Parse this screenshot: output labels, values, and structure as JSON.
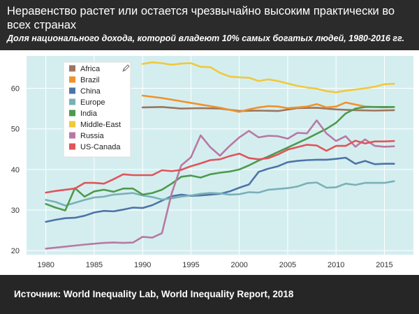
{
  "header": {
    "title": "Неравенство растет или остается чрезвычайно высоким практически во всех странах",
    "subtitle": "Доля национального дохода, которой владеют 10% самых богатых людей, 1980-2016 гг."
  },
  "footer": {
    "source": "Источник: World Inequality Lab, World Inequality Report, 2018"
  },
  "colors": {
    "plot_background": "#d4eef0",
    "gridline": "#ffffff"
  },
  "chart_data": {
    "type": "line",
    "xlim": [
      1978,
      2018
    ],
    "ylim": [
      19,
      68
    ],
    "xticks": [
      1980,
      1985,
      1990,
      1995,
      2000,
      2005,
      2010,
      2015
    ],
    "yticks": [
      20,
      30,
      40,
      50,
      60
    ],
    "grid": true,
    "legend_position": "top-left",
    "series": [
      {
        "name": "Africa",
        "color": "#9b7560",
        "points": [
          [
            1990,
            55.3
          ],
          [
            1992,
            55.4
          ],
          [
            1994,
            55.0
          ],
          [
            1996,
            55.1
          ],
          [
            1998,
            55.0
          ],
          [
            2000,
            54.4
          ],
          [
            2002,
            54.5
          ],
          [
            2004,
            54.4
          ],
          [
            2006,
            55.1
          ],
          [
            2008,
            55.2
          ],
          [
            2010,
            54.8
          ],
          [
            2012,
            54.6
          ],
          [
            2014,
            54.5
          ],
          [
            2016,
            54.6
          ]
        ]
      },
      {
        "name": "Brazil",
        "color": "#f0922a",
        "points": [
          [
            1990,
            58.2
          ],
          [
            1992,
            57.6
          ],
          [
            1994,
            56.8
          ],
          [
            1996,
            56.0
          ],
          [
            1998,
            55.2
          ],
          [
            2000,
            54.2
          ],
          [
            2001,
            54.8
          ],
          [
            2002,
            55.3
          ],
          [
            2003,
            55.6
          ],
          [
            2004,
            55.5
          ],
          [
            2005,
            55.1
          ],
          [
            2006,
            55.3
          ],
          [
            2007,
            55.5
          ],
          [
            2008,
            56.1
          ],
          [
            2009,
            55.3
          ],
          [
            2010,
            55.5
          ],
          [
            2011,
            56.5
          ],
          [
            2012,
            56.0
          ],
          [
            2013,
            55.5
          ],
          [
            2014,
            55.4
          ],
          [
            2015,
            55.3
          ],
          [
            2016,
            55.4
          ]
        ]
      },
      {
        "name": "China",
        "color": "#4d74a7",
        "points": [
          [
            1980,
            27.1
          ],
          [
            1981,
            27.6
          ],
          [
            1982,
            28.0
          ],
          [
            1983,
            28.1
          ],
          [
            1984,
            28.6
          ],
          [
            1985,
            29.4
          ],
          [
            1986,
            29.8
          ],
          [
            1987,
            29.7
          ],
          [
            1988,
            30.1
          ],
          [
            1989,
            30.6
          ],
          [
            1990,
            30.5
          ],
          [
            1991,
            31.2
          ],
          [
            1992,
            32.3
          ],
          [
            1993,
            33.4
          ],
          [
            1994,
            33.8
          ],
          [
            1995,
            33.5
          ],
          [
            1996,
            33.6
          ],
          [
            1997,
            33.8
          ],
          [
            1998,
            34.0
          ],
          [
            1999,
            34.6
          ],
          [
            2000,
            35.5
          ],
          [
            2001,
            36.3
          ],
          [
            2002,
            39.4
          ],
          [
            2003,
            40.2
          ],
          [
            2004,
            40.8
          ],
          [
            2005,
            41.8
          ],
          [
            2006,
            42.1
          ],
          [
            2007,
            42.3
          ],
          [
            2008,
            42.4
          ],
          [
            2009,
            42.4
          ],
          [
            2010,
            42.6
          ],
          [
            2011,
            42.9
          ],
          [
            2012,
            41.4
          ],
          [
            2013,
            42.1
          ],
          [
            2014,
            41.3
          ],
          [
            2015,
            41.4
          ],
          [
            2016,
            41.4
          ]
        ]
      },
      {
        "name": "Europe",
        "color": "#7ab0b7",
        "points": [
          [
            1980,
            32.5
          ],
          [
            1981,
            32.0
          ],
          [
            1982,
            31.1
          ],
          [
            1983,
            31.8
          ],
          [
            1984,
            32.5
          ],
          [
            1985,
            33.1
          ],
          [
            1986,
            33.3
          ],
          [
            1987,
            33.8
          ],
          [
            1988,
            34.0
          ],
          [
            1989,
            34.2
          ],
          [
            1990,
            33.6
          ],
          [
            1991,
            33.2
          ],
          [
            1992,
            32.6
          ],
          [
            1993,
            32.9
          ],
          [
            1994,
            33.3
          ],
          [
            1995,
            33.6
          ],
          [
            1996,
            34.0
          ],
          [
            1997,
            34.2
          ],
          [
            1998,
            34.1
          ],
          [
            1999,
            33.8
          ],
          [
            2000,
            33.9
          ],
          [
            2001,
            34.4
          ],
          [
            2002,
            34.3
          ],
          [
            2003,
            35.0
          ],
          [
            2004,
            35.2
          ],
          [
            2005,
            35.4
          ],
          [
            2006,
            35.8
          ],
          [
            2007,
            36.6
          ],
          [
            2008,
            36.8
          ],
          [
            2009,
            35.5
          ],
          [
            2010,
            35.6
          ],
          [
            2011,
            36.5
          ],
          [
            2012,
            36.2
          ],
          [
            2013,
            36.7
          ],
          [
            2014,
            36.7
          ],
          [
            2015,
            36.7
          ],
          [
            2016,
            37.1
          ]
        ]
      },
      {
        "name": "India",
        "color": "#4e9a4c",
        "points": [
          [
            1980,
            31.5
          ],
          [
            1981,
            30.6
          ],
          [
            1982,
            29.9
          ],
          [
            1983,
            35.4
          ],
          [
            1984,
            33.3
          ],
          [
            1985,
            34.6
          ],
          [
            1986,
            35.0
          ],
          [
            1987,
            34.5
          ],
          [
            1988,
            35.3
          ],
          [
            1989,
            35.3
          ],
          [
            1990,
            33.8
          ],
          [
            1991,
            34.2
          ],
          [
            1992,
            35.0
          ],
          [
            1993,
            36.5
          ],
          [
            1994,
            38.2
          ],
          [
            1995,
            38.5
          ],
          [
            1996,
            38.0
          ],
          [
            1997,
            38.8
          ],
          [
            1998,
            39.2
          ],
          [
            1999,
            39.5
          ],
          [
            2000,
            40.0
          ],
          [
            2001,
            41.0
          ],
          [
            2002,
            42.2
          ],
          [
            2003,
            43.2
          ],
          [
            2004,
            44.3
          ],
          [
            2005,
            45.4
          ],
          [
            2006,
            46.5
          ],
          [
            2007,
            47.6
          ],
          [
            2008,
            48.8
          ],
          [
            2009,
            50.0
          ],
          [
            2010,
            51.5
          ],
          [
            2011,
            53.8
          ],
          [
            2012,
            55.0
          ],
          [
            2013,
            55.4
          ],
          [
            2014,
            55.4
          ],
          [
            2015,
            55.4
          ],
          [
            2016,
            55.4
          ]
        ]
      },
      {
        "name": "Middle-East",
        "color": "#f0c93a",
        "points": [
          [
            1990,
            66.0
          ],
          [
            1991,
            66.4
          ],
          [
            1992,
            66.2
          ],
          [
            1993,
            65.8
          ],
          [
            1994,
            66.1
          ],
          [
            1995,
            66.2
          ],
          [
            1996,
            65.3
          ],
          [
            1997,
            65.2
          ],
          [
            1998,
            63.8
          ],
          [
            1999,
            62.9
          ],
          [
            2000,
            62.7
          ],
          [
            2001,
            62.6
          ],
          [
            2002,
            61.8
          ],
          [
            2003,
            62.2
          ],
          [
            2004,
            61.8
          ],
          [
            2005,
            61.2
          ],
          [
            2006,
            60.6
          ],
          [
            2007,
            60.2
          ],
          [
            2008,
            59.9
          ],
          [
            2009,
            59.3
          ],
          [
            2010,
            59.0
          ],
          [
            2011,
            59.4
          ],
          [
            2012,
            59.7
          ],
          [
            2013,
            60.0
          ],
          [
            2014,
            60.4
          ],
          [
            2015,
            61.0
          ],
          [
            2016,
            61.1
          ]
        ]
      },
      {
        "name": "Russia",
        "color": "#b879a1",
        "points": [
          [
            1980,
            20.5
          ],
          [
            1982,
            21.0
          ],
          [
            1984,
            21.5
          ],
          [
            1986,
            21.9
          ],
          [
            1987,
            22.0
          ],
          [
            1988,
            21.9
          ],
          [
            1989,
            22.0
          ],
          [
            1990,
            23.4
          ],
          [
            1991,
            23.2
          ],
          [
            1992,
            24.3
          ],
          [
            1993,
            34.1
          ],
          [
            1994,
            41.0
          ],
          [
            1995,
            43.0
          ],
          [
            1996,
            48.4
          ],
          [
            1997,
            45.5
          ],
          [
            1998,
            43.4
          ],
          [
            1999,
            45.8
          ],
          [
            2000,
            47.9
          ],
          [
            2001,
            49.5
          ],
          [
            2002,
            47.9
          ],
          [
            2003,
            48.3
          ],
          [
            2004,
            48.2
          ],
          [
            2005,
            47.6
          ],
          [
            2006,
            49.0
          ],
          [
            2007,
            48.9
          ],
          [
            2008,
            52.1
          ],
          [
            2009,
            48.9
          ],
          [
            2010,
            47.0
          ],
          [
            2011,
            48.2
          ],
          [
            2012,
            45.6
          ],
          [
            2013,
            47.4
          ],
          [
            2014,
            45.8
          ],
          [
            2015,
            45.6
          ],
          [
            2016,
            45.7
          ]
        ]
      },
      {
        "name": "US-Canada",
        "color": "#e0545a",
        "points": [
          [
            1980,
            34.3
          ],
          [
            1981,
            34.7
          ],
          [
            1982,
            35.0
          ],
          [
            1983,
            35.3
          ],
          [
            1984,
            36.7
          ],
          [
            1985,
            36.7
          ],
          [
            1986,
            36.5
          ],
          [
            1987,
            37.6
          ],
          [
            1988,
            38.8
          ],
          [
            1989,
            38.6
          ],
          [
            1990,
            38.6
          ],
          [
            1991,
            38.6
          ],
          [
            1992,
            39.8
          ],
          [
            1993,
            39.6
          ],
          [
            1994,
            39.9
          ],
          [
            1995,
            40.8
          ],
          [
            1996,
            41.5
          ],
          [
            1997,
            42.3
          ],
          [
            1998,
            42.5
          ],
          [
            1999,
            43.3
          ],
          [
            2000,
            43.9
          ],
          [
            2001,
            42.8
          ],
          [
            2002,
            42.5
          ],
          [
            2003,
            42.8
          ],
          [
            2004,
            43.7
          ],
          [
            2005,
            44.9
          ],
          [
            2006,
            45.5
          ],
          [
            2007,
            46.1
          ],
          [
            2008,
            45.9
          ],
          [
            2009,
            44.6
          ],
          [
            2010,
            45.8
          ],
          [
            2011,
            45.8
          ],
          [
            2012,
            47.1
          ],
          [
            2013,
            46.4
          ],
          [
            2014,
            46.9
          ],
          [
            2015,
            46.9
          ],
          [
            2016,
            47.0
          ]
        ]
      }
    ]
  }
}
